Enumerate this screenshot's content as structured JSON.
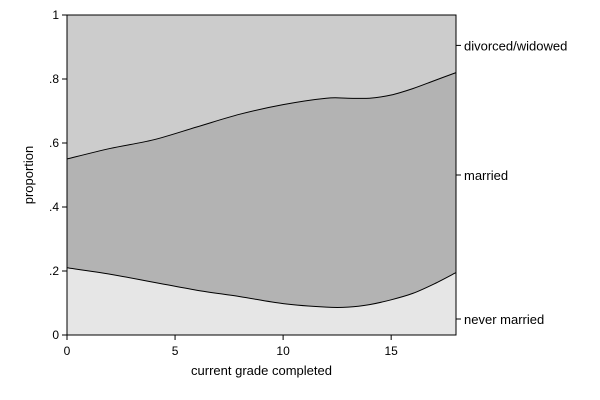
{
  "chart_data": {
    "type": "area",
    "title": "",
    "xlabel": "current grade completed",
    "ylabel": "proportion",
    "xlim": [
      0,
      18
    ],
    "ylim": [
      0,
      1
    ],
    "grid": false,
    "legend": "right side labels",
    "xticks": [
      {
        "value": 0,
        "label": "0"
      },
      {
        "value": 5,
        "label": "5"
      },
      {
        "value": 10,
        "label": "10"
      },
      {
        "value": 15,
        "label": "15"
      }
    ],
    "yticks": [
      {
        "value": 0,
        "label": "0"
      },
      {
        "value": 0.2,
        "label": ".2"
      },
      {
        "value": 0.4,
        "label": ".4"
      },
      {
        "value": 0.6,
        "label": ".6"
      },
      {
        "value": 0.8,
        "label": ".8"
      },
      {
        "value": 1,
        "label": "1"
      }
    ],
    "x": [
      0,
      2,
      4,
      6,
      8,
      10,
      12,
      13,
      14,
      15,
      16,
      17,
      18
    ],
    "series": [
      {
        "name": "never married",
        "values": [
          0.21,
          0.19,
          0.165,
          0.14,
          0.12,
          0.098,
          0.087,
          0.087,
          0.095,
          0.11,
          0.13,
          0.16,
          0.195
        ],
        "color": "#e6e6e6"
      },
      {
        "name": "married",
        "values": [
          0.34,
          0.393,
          0.445,
          0.51,
          0.57,
          0.622,
          0.653,
          0.653,
          0.645,
          0.64,
          0.64,
          0.635,
          0.625
        ],
        "color": "#b3b3b3"
      },
      {
        "name": "divorced/widowed",
        "values": [
          0.45,
          0.417,
          0.39,
          0.35,
          0.31,
          0.28,
          0.26,
          0.26,
          0.26,
          0.25,
          0.23,
          0.205,
          0.18
        ],
        "color": "#cccccc"
      }
    ],
    "band_label_values": [
      0.05,
      0.5,
      0.905
    ]
  }
}
